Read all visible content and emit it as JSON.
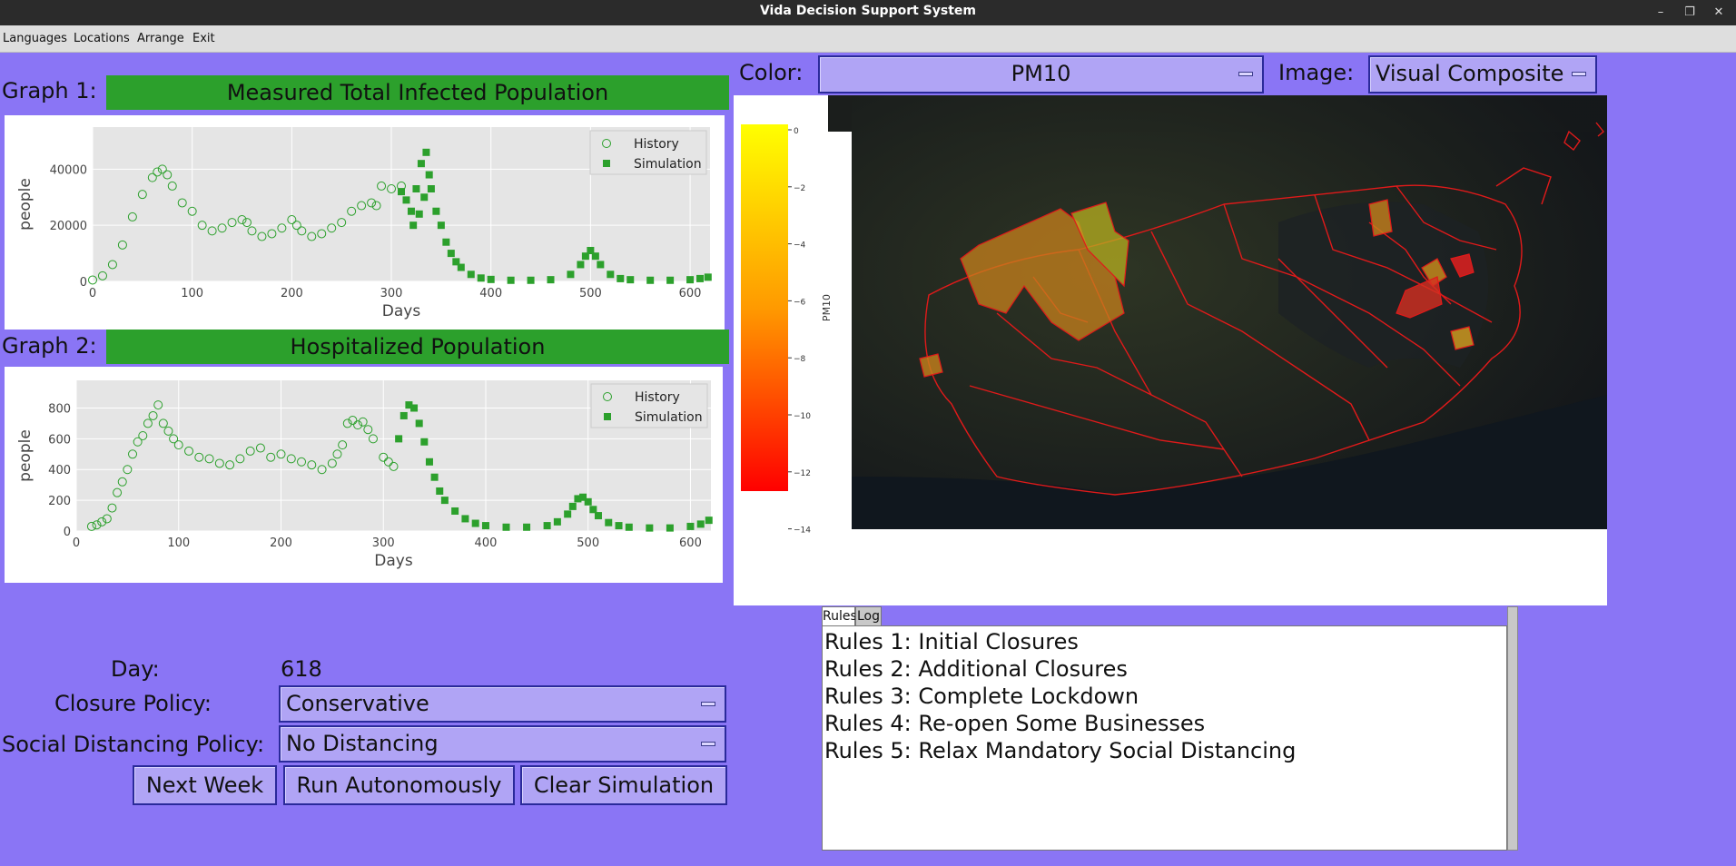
{
  "window": {
    "title": "Vida Decision Support System"
  },
  "menu": {
    "items": [
      "Languages",
      "Locations",
      "Arrange",
      "Exit"
    ]
  },
  "graph1": {
    "label": "Graph 1:",
    "title": "Measured Total Infected Population",
    "xlabel": "Days",
    "ylabel": "people",
    "legend": {
      "history": "History",
      "simulation": "Simulation"
    }
  },
  "graph2": {
    "label": "Graph 2:",
    "title": "Hospitalized Population",
    "xlabel": "Days",
    "ylabel": "people",
    "legend": {
      "history": "History",
      "simulation": "Simulation"
    }
  },
  "map": {
    "color_label": "Color:",
    "color_value": "PM10",
    "image_label": "Image:",
    "image_value": "Visual Composite",
    "colorbar_label": "PM10",
    "colorbar_ticks": [
      "0",
      "−2",
      "−4",
      "−6",
      "−8",
      "−10",
      "−12",
      "−14"
    ]
  },
  "controls": {
    "day_label": "Day:",
    "day_value": "618",
    "closure_label": "Closure Policy:",
    "closure_value": "Conservative",
    "distancing_label": "Social Distancing Policy:",
    "distancing_value": "No Distancing",
    "next_week": "Next Week",
    "run_autonomously": "Run Autonomously",
    "clear_simulation": "Clear Simulation"
  },
  "tabs": {
    "rules": "Rules",
    "log": "Log"
  },
  "rules": [
    "Rules 1: Initial Closures",
    "Rules 2: Additional Closures",
    "Rules 3: Complete Lockdown",
    "Rules 4: Re-open Some Businesses",
    "Rules 5: Relax Mandatory Social Distancing"
  ],
  "colors": {
    "background": "#8a75f5",
    "accent_green": "#2ca02c",
    "combo_fill": "#b0a4f5",
    "combo_border": "#2a2a9a",
    "titlebar": "#2b2b2b"
  },
  "chart_data": [
    {
      "type": "scatter",
      "title": "Measured Total Infected Population",
      "xlabel": "Days",
      "ylabel": "people",
      "xlim": [
        0,
        620
      ],
      "ylim": [
        0,
        55000
      ],
      "xticks": [
        0,
        100,
        200,
        300,
        400,
        500,
        600
      ],
      "yticks": [
        0,
        20000,
        40000
      ],
      "grid": true,
      "legend": "top-right",
      "series": [
        {
          "name": "History",
          "marker": "open-circle",
          "x": [
            0,
            10,
            20,
            30,
            40,
            50,
            60,
            65,
            70,
            75,
            80,
            90,
            100,
            110,
            120,
            130,
            140,
            150,
            155,
            160,
            170,
            180,
            190,
            200,
            205,
            210,
            220,
            230,
            240,
            250,
            260,
            270,
            280,
            285,
            290,
            300,
            310
          ],
          "y": [
            500,
            2000,
            6000,
            13000,
            23000,
            31000,
            37000,
            39000,
            40000,
            38000,
            34000,
            28000,
            25000,
            20000,
            18000,
            19000,
            21000,
            22000,
            21000,
            18000,
            16000,
            17000,
            19000,
            22000,
            20000,
            18000,
            16000,
            17000,
            19000,
            21000,
            25000,
            27000,
            28000,
            27000,
            34000,
            33000,
            34000
          ]
        },
        {
          "name": "Simulation",
          "marker": "filled-square",
          "x": [
            310,
            315,
            320,
            322,
            325,
            328,
            330,
            333,
            335,
            338,
            340,
            345,
            350,
            355,
            360,
            365,
            370,
            380,
            390,
            400,
            420,
            440,
            460,
            480,
            490,
            495,
            500,
            505,
            510,
            520,
            530,
            540,
            560,
            580,
            600,
            610,
            618
          ],
          "y": [
            32000,
            29000,
            25000,
            20000,
            33000,
            24000,
            42000,
            30000,
            46000,
            38000,
            33000,
            25000,
            20000,
            14000,
            10000,
            7000,
            5000,
            2500,
            1200,
            700,
            400,
            400,
            600,
            2500,
            6000,
            9000,
            11000,
            9000,
            6000,
            2500,
            1000,
            600,
            400,
            400,
            600,
            1000,
            1500
          ]
        }
      ]
    },
    {
      "type": "scatter",
      "title": "Hospitalized Population",
      "xlabel": "Days",
      "ylabel": "people",
      "xlim": [
        0,
        620
      ],
      "ylim": [
        0,
        980
      ],
      "xticks": [
        0,
        100,
        200,
        300,
        400,
        500,
        600
      ],
      "yticks": [
        0,
        200,
        400,
        600,
        800
      ],
      "grid": true,
      "legend": "top-right",
      "series": [
        {
          "name": "History",
          "marker": "open-circle",
          "x": [
            15,
            20,
            25,
            30,
            35,
            40,
            45,
            50,
            55,
            60,
            65,
            70,
            75,
            80,
            85,
            90,
            95,
            100,
            110,
            120,
            130,
            140,
            150,
            160,
            170,
            180,
            190,
            200,
            210,
            220,
            230,
            240,
            250,
            255,
            260,
            265,
            270,
            275,
            280,
            285,
            290,
            300,
            305,
            310
          ],
          "y": [
            30,
            40,
            60,
            80,
            150,
            250,
            320,
            400,
            500,
            580,
            620,
            700,
            750,
            820,
            700,
            650,
            600,
            560,
            520,
            480,
            470,
            440,
            430,
            470,
            520,
            540,
            480,
            500,
            470,
            450,
            430,
            400,
            440,
            500,
            560,
            700,
            720,
            690,
            710,
            660,
            600,
            480,
            450,
            420
          ]
        },
        {
          "name": "Simulation",
          "marker": "filled-square",
          "x": [
            315,
            320,
            325,
            330,
            335,
            340,
            345,
            350,
            355,
            360,
            370,
            380,
            390,
            400,
            420,
            440,
            460,
            470,
            480,
            485,
            490,
            495,
            500,
            505,
            510,
            520,
            530,
            540,
            560,
            580,
            600,
            610,
            618
          ],
          "y": [
            600,
            750,
            820,
            800,
            700,
            580,
            450,
            350,
            260,
            200,
            130,
            80,
            50,
            35,
            25,
            25,
            35,
            60,
            110,
            160,
            210,
            220,
            190,
            140,
            100,
            55,
            35,
            25,
            20,
            20,
            30,
            45,
            70
          ]
        }
      ]
    }
  ]
}
